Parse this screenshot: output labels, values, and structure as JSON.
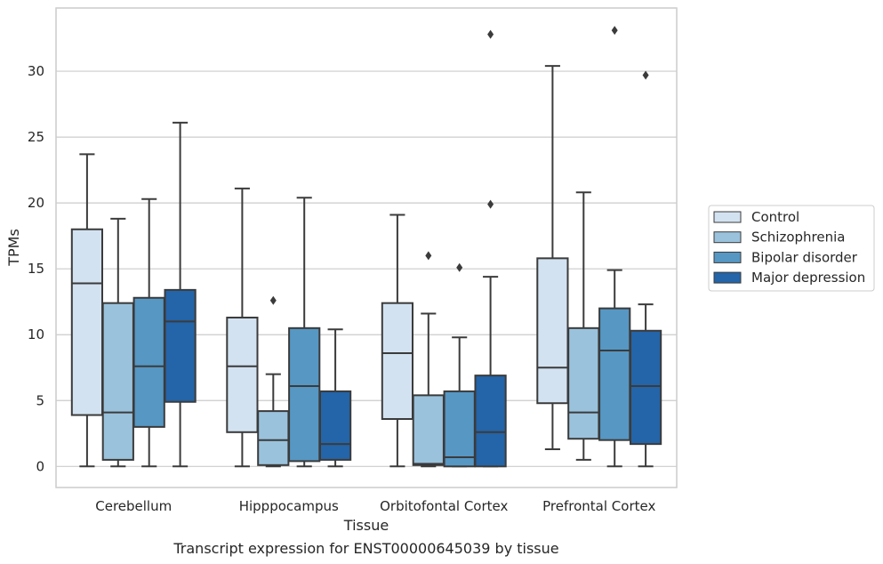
{
  "chart_data": {
    "type": "box",
    "xlabel": "Tissue",
    "ylabel": "TPMs",
    "caption": "Transcript expression for ENST00000645039 by tissue",
    "ylim": [
      -1.6,
      34.8
    ],
    "yticks": [
      0,
      5,
      10,
      15,
      20,
      25,
      30
    ],
    "grid": true,
    "legend_position": "right",
    "categories": [
      "Cerebellum",
      "Hipppocampus",
      "Orbitofontal Cortex",
      "Prefrontal Cortex"
    ],
    "series": [
      {
        "name": "Control",
        "color": "#d3e2f1"
      },
      {
        "name": "Schizophrenia",
        "color": "#9ac2dc"
      },
      {
        "name": "Bipolar disorder",
        "color": "#5697c4"
      },
      {
        "name": "Major depression",
        "color": "#2464a8"
      }
    ],
    "boxes": [
      [
        {
          "min": 0,
          "q1": 3.9,
          "median": 13.9,
          "q3": 18.0,
          "max": 23.7,
          "outliers": []
        },
        {
          "min": 0,
          "q1": 0.5,
          "median": 4.1,
          "q3": 12.4,
          "max": 18.8,
          "outliers": []
        },
        {
          "min": 0,
          "q1": 3.0,
          "median": 7.6,
          "q3": 12.8,
          "max": 20.3,
          "outliers": []
        },
        {
          "min": 0,
          "q1": 4.9,
          "median": 11.0,
          "q3": 13.4,
          "max": 26.1,
          "outliers": []
        }
      ],
      [
        {
          "min": 0,
          "q1": 2.6,
          "median": 7.6,
          "q3": 11.3,
          "max": 21.1,
          "outliers": []
        },
        {
          "min": 0,
          "q1": 0.1,
          "median": 2.0,
          "q3": 4.2,
          "max": 7.0,
          "outliers": [
            12.6
          ]
        },
        {
          "min": 0,
          "q1": 0.4,
          "median": 6.1,
          "q3": 10.5,
          "max": 20.4,
          "outliers": []
        },
        {
          "min": 0,
          "q1": 0.5,
          "median": 1.7,
          "q3": 5.7,
          "max": 10.4,
          "outliers": []
        }
      ],
      [
        {
          "min": 0,
          "q1": 3.6,
          "median": 8.6,
          "q3": 12.4,
          "max": 19.1,
          "outliers": []
        },
        {
          "min": 0,
          "q1": 0.1,
          "median": 0.2,
          "q3": 5.4,
          "max": 11.6,
          "outliers": [
            16.0
          ]
        },
        {
          "min": 0,
          "q1": 0,
          "median": 0.7,
          "q3": 5.7,
          "max": 9.8,
          "outliers": [
            15.1
          ]
        },
        {
          "min": 0,
          "q1": 0,
          "median": 2.6,
          "q3": 6.9,
          "max": 14.4,
          "outliers": [
            19.9,
            32.8
          ]
        }
      ],
      [
        {
          "min": 1.3,
          "q1": 4.8,
          "median": 7.5,
          "q3": 15.8,
          "max": 30.4,
          "outliers": []
        },
        {
          "min": 0.5,
          "q1": 2.1,
          "median": 4.1,
          "q3": 10.5,
          "max": 20.8,
          "outliers": []
        },
        {
          "min": 0,
          "q1": 2.0,
          "median": 8.8,
          "q3": 12.0,
          "max": 14.9,
          "outliers": [
            33.1
          ]
        },
        {
          "min": 0,
          "q1": 1.7,
          "median": 6.1,
          "q3": 10.3,
          "max": 12.3,
          "outliers": [
            29.7
          ]
        }
      ]
    ]
  }
}
